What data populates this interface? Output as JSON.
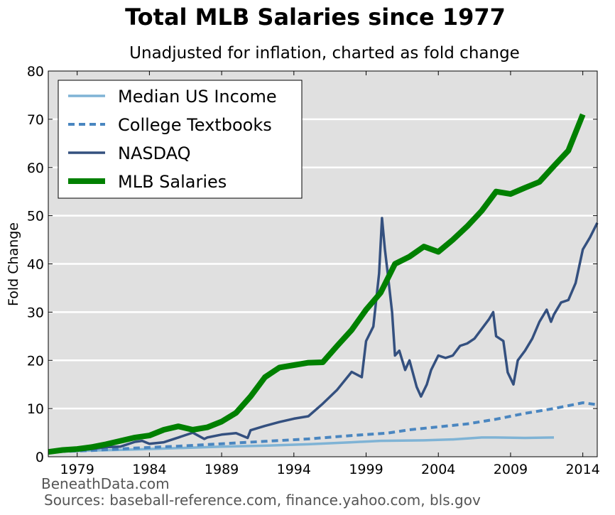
{
  "chart_data": {
    "type": "line",
    "title": "Total MLB Salaries since 1977",
    "subtitle": "Unadjusted for inflation, charted as fold change",
    "xlabel": "",
    "ylabel": "Fold Change",
    "xlim": [
      1977,
      2015
    ],
    "ylim": [
      0,
      80
    ],
    "x_ticks": [
      "1979",
      "1984",
      "1989",
      "1994",
      "1999",
      "2004",
      "2009",
      "2014"
    ],
    "y_ticks": [
      "0",
      "10",
      "20",
      "30",
      "40",
      "50",
      "60",
      "70",
      "80"
    ],
    "grid": "horizontal",
    "legend_position": "top-left",
    "background": "#e0e0e0",
    "series": [
      {
        "name": "Median US Income",
        "color": "#7fb3d5",
        "style": "solid",
        "width": 3.5,
        "x": [
          1977,
          1980,
          1983,
          1986,
          1989,
          1992,
          1995,
          1998,
          2000,
          2003,
          2005,
          2007,
          2008,
          2010,
          2012
        ],
        "y": [
          1.0,
          1.3,
          1.5,
          1.8,
          2.1,
          2.3,
          2.6,
          3.0,
          3.3,
          3.4,
          3.6,
          4.0,
          4.0,
          3.9,
          4.0
        ]
      },
      {
        "name": "College Textbooks",
        "color": "#4a86c0",
        "style": "dashed",
        "width": 4,
        "x": [
          1977,
          1980,
          1983,
          1986,
          1989,
          1992,
          1995,
          1998,
          2000,
          2000.5,
          2002,
          2004,
          2006,
          2008,
          2010,
          2012,
          2014,
          2015
        ],
        "y": [
          1.0,
          1.3,
          1.8,
          2.2,
          2.7,
          3.2,
          3.7,
          4.4,
          4.8,
          4.9,
          5.6,
          6.2,
          6.8,
          7.8,
          9.0,
          10.0,
          11.2,
          10.8
        ]
      },
      {
        "name": "NASDAQ",
        "color": "#34507f",
        "style": "solid",
        "width": 3.5,
        "x": [
          1977,
          1978,
          1979,
          1980,
          1981,
          1982,
          1983,
          1983.5,
          1984,
          1985,
          1986,
          1987,
          1987.8,
          1988,
          1989,
          1990,
          1990.8,
          1991,
          1992,
          1993,
          1994,
          1995,
          1996,
          1997,
          1998,
          1998.7,
          1999,
          1999.5,
          1999.9,
          2000.1,
          2000.3,
          2000.5,
          2000.8,
          2001,
          2001.3,
          2001.7,
          2002,
          2002.5,
          2002.8,
          2003.2,
          2003.5,
          2004,
          2004.5,
          2005,
          2005.5,
          2006,
          2006.5,
          2007,
          2007.5,
          2007.8,
          2008,
          2008.5,
          2008.8,
          2009.2,
          2009.5,
          2010,
          2010.5,
          2011,
          2011.5,
          2011.8,
          2012,
          2012.5,
          2013,
          2013.5,
          2014,
          2014.5,
          2015
        ],
        "y": [
          1.0,
          1.1,
          1.3,
          1.6,
          2.0,
          2.1,
          3.1,
          3.3,
          2.7,
          3.0,
          4.0,
          5.0,
          3.7,
          4.0,
          4.6,
          4.9,
          3.9,
          5.5,
          6.4,
          7.2,
          7.9,
          8.4,
          11.0,
          13.9,
          17.6,
          16.5,
          24.0,
          27.0,
          38.0,
          49.5,
          43.0,
          38.0,
          30.0,
          21.0,
          22.0,
          18.0,
          20.0,
          14.5,
          12.5,
          15.0,
          18.0,
          21.0,
          20.5,
          21.0,
          23.0,
          23.5,
          24.5,
          26.5,
          28.5,
          30.0,
          25.0,
          24.0,
          17.5,
          15.0,
          20.0,
          22.0,
          24.5,
          28.0,
          30.5,
          28.0,
          29.5,
          32.0,
          32.5,
          36.0,
          43.0,
          45.5,
          48.5
        ]
      },
      {
        "name": "MLB Salaries",
        "color": "#008000",
        "style": "solid",
        "width": 8,
        "x": [
          1977,
          1978,
          1979,
          1980,
          1981,
          1982,
          1983,
          1984,
          1985,
          1986,
          1987,
          1988,
          1989,
          1990,
          1991,
          1992,
          1993,
          1994,
          1995,
          1996,
          1997,
          1998,
          1999,
          2000,
          2001,
          2002,
          2003,
          2004,
          2005,
          2006,
          2007,
          2008,
          2009,
          2010,
          2011,
          2012,
          2013,
          2014
        ],
        "y": [
          1.0,
          1.4,
          1.6,
          2.0,
          2.6,
          3.3,
          4.0,
          4.4,
          5.6,
          6.3,
          5.6,
          6.1,
          7.3,
          9.1,
          12.5,
          16.5,
          18.5,
          19.0,
          19.5,
          19.6,
          23.0,
          26.3,
          30.5,
          34.0,
          40.0,
          41.5,
          43.6,
          42.5,
          45.0,
          47.8,
          51.0,
          55.0,
          54.5,
          55.8,
          57.0,
          60.3,
          63.5,
          71.0
        ]
      }
    ]
  },
  "footer": {
    "credit": "BeneathData.com",
    "sources": "Sources: baseball-reference.com, finance.yahoo.com, bls.gov"
  }
}
